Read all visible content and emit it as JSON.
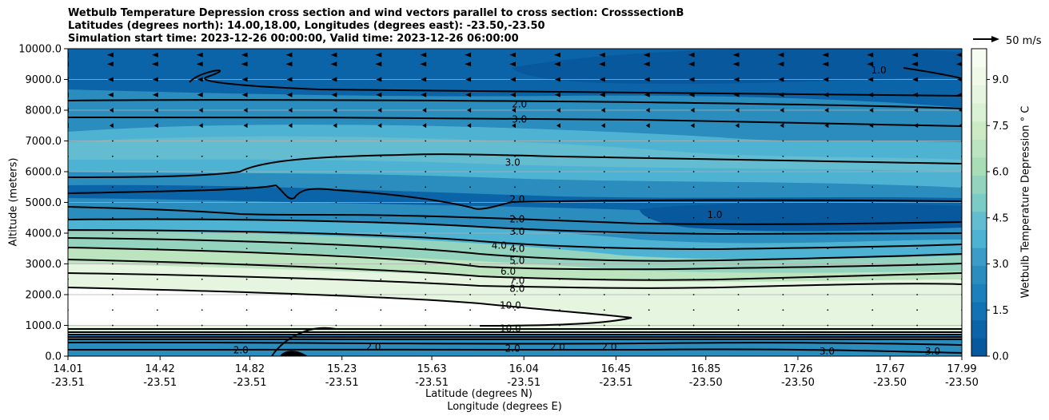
{
  "chart_data": {
    "type": "contour",
    "title_lines": [
      "Wetbulb Temperature Depression cross section and wind vectors parallel to cross section: CrosssectionB",
      "Latitudes (degrees north): 14.00,18.00, Longitudes (degrees east): -23.50,-23.50",
      "Simulation start time: 2023-12-26 00:00:00, Valid time: 2023-12-26 06:00:00"
    ],
    "ylabel": "Altitude (meters)",
    "xlabel_line1": "Latitude (degrees N)",
    "xlabel_line2": "Longitude (degrees E)",
    "ylim": [
      0,
      10000
    ],
    "yticks": [
      "0.0",
      "1000.0",
      "2000.0",
      "3000.0",
      "4000.0",
      "5000.0",
      "6000.0",
      "7000.0",
      "8000.0",
      "9000.0",
      "10000.0"
    ],
    "xticks": [
      {
        "lat": "14.01",
        "lon": "-23.51"
      },
      {
        "lat": "14.42",
        "lon": "-23.51"
      },
      {
        "lat": "14.82",
        "lon": "-23.51"
      },
      {
        "lat": "15.23",
        "lon": "-23.51"
      },
      {
        "lat": "15.63",
        "lon": "-23.51"
      },
      {
        "lat": "16.04",
        "lon": "-23.51"
      },
      {
        "lat": "16.45",
        "lon": "-23.51"
      },
      {
        "lat": "16.85",
        "lon": "-23.50"
      },
      {
        "lat": "17.26",
        "lon": "-23.50"
      },
      {
        "lat": "17.67",
        "lon": "-23.50"
      },
      {
        "lat": "17.99",
        "lon": "-23.50"
      }
    ],
    "grid": "horizontal",
    "colorbar": {
      "label": "Wetbulb Temperature Depression $^\\circ$C",
      "label_display": "Wetbulb Temperature Depression ° C",
      "range": [
        0,
        10
      ],
      "ticks": [
        "0.0",
        "1.5",
        "3.0",
        "4.5",
        "6.0",
        "7.5",
        "9.0"
      ],
      "colors": [
        "#08589e",
        "#0b64a8",
        "#1372b3",
        "#1d80bb",
        "#2b8cbe",
        "#3a9cc7",
        "#4eb3d3",
        "#63bcd0",
        "#7bccc4",
        "#94d4bf",
        "#a8ddb5",
        "#bce5bf",
        "#ccebc5",
        "#dbf1d5",
        "#e6f5e0",
        "#f0f9e8",
        "#f7fcf0"
      ]
    },
    "quiver_key": {
      "label": "50 m/s",
      "value": 50
    },
    "contour_levels_labeled": [
      "1.0",
      "2.0",
      "3.0",
      "4.0",
      "5.0",
      "6.0",
      "7.0",
      "8.0",
      "10.0"
    ],
    "contour_label_texts": [
      {
        "text": "2.0",
        "lat": 16.02,
        "alt": 8200
      },
      {
        "text": "3.0",
        "lat": 16.02,
        "alt": 7700
      },
      {
        "text": "3.0",
        "lat": 15.99,
        "alt": 6300
      },
      {
        "text": "2.0",
        "lat": 16.01,
        "alt": 5100
      },
      {
        "text": "2.0",
        "lat": 16.01,
        "alt": 4450
      },
      {
        "text": "3.0",
        "lat": 16.01,
        "alt": 4050
      },
      {
        "text": "4.0",
        "lat": 15.93,
        "alt": 3600
      },
      {
        "text": "4.0",
        "lat": 16.01,
        "alt": 3500
      },
      {
        "text": "5.0",
        "lat": 16.01,
        "alt": 3100
      },
      {
        "text": "6.0",
        "lat": 15.97,
        "alt": 2750
      },
      {
        "text": "7.0",
        "lat": 16.01,
        "alt": 2450
      },
      {
        "text": "8.0",
        "lat": 16.01,
        "alt": 2200
      },
      {
        "text": "10.0",
        "lat": 15.98,
        "alt": 1650
      },
      {
        "text": "10.0",
        "lat": 15.98,
        "alt": 900
      },
      {
        "text": "2.0",
        "lat": 15.99,
        "alt": 250
      },
      {
        "text": "1.0",
        "lat": 17.62,
        "alt": 9300
      },
      {
        "text": "1.0",
        "lat": 16.89,
        "alt": 4600
      },
      {
        "text": "2.0",
        "lat": 14.78,
        "alt": 200
      },
      {
        "text": "2.0",
        "lat": 15.37,
        "alt": 300
      },
      {
        "text": "2.0",
        "lat": 16.19,
        "alt": 300
      },
      {
        "text": "2.0",
        "lat": 16.42,
        "alt": 300
      },
      {
        "text": "3.0",
        "lat": 17.39,
        "alt": 150
      },
      {
        "text": "3.0",
        "lat": 17.86,
        "alt": 150
      }
    ]
  }
}
